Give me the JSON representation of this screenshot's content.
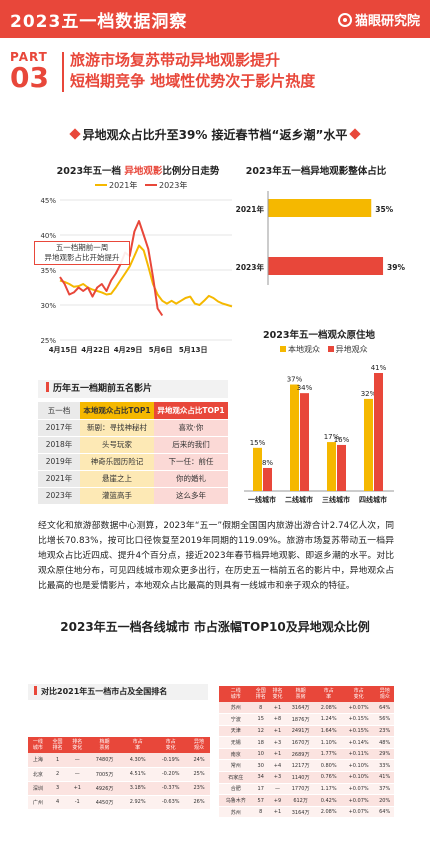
{
  "header": {
    "title": "2023五一档数据洞察",
    "brand": "猫眼研究院"
  },
  "part": {
    "label": "PART",
    "number": "03"
  },
  "headline": {
    "line1": "旅游市场复苏带动异地观影提升",
    "line2": "短档期竞争 地域性优势次于影片热度"
  },
  "section1_title": "异地观众占比升至39% 接近春节档“返乡潮”水平",
  "line_chart": {
    "title_pre": "2023年五一档 ",
    "title_hl": "异地观影",
    "title_post": "比例分日走势",
    "annotation_line1": "五一档期前一周",
    "annotation_line2": "异地观影占比开始提升"
  },
  "bar_overall": {
    "title": "2023年五一档异地观影整体占比"
  },
  "bar_origin": {
    "title": "2023年五一档观众原住地"
  },
  "top5": {
    "title": "历年五一档期前五名影片",
    "header": [
      "五一档",
      "本地观众占比TOP1",
      "异地观众占比TOP1"
    ],
    "rows": [
      [
        "2017年",
        "新剧：寻找神秘村",
        "喜欢·你"
      ],
      [
        "2018年",
        "头号玩家",
        "后来的我们"
      ],
      [
        "2019年",
        "神奇乐园历险记",
        "下一任：前任"
      ],
      [
        "2021年",
        "悬崖之上",
        "你的婚礼"
      ],
      [
        "2023年",
        "灌篮高手",
        "这么多年"
      ]
    ]
  },
  "paragraph": "经文化和旅游部数据中心测算，2023年“五一”假期全国国内旅游出游合计2.74亿人次，同比增长70.83%，按可比口径恢复至2019年同期的119.09%。旅游市场复苏带动五一档异地观众占比近四成、提升4个百分点，接近2023年春节档异地观影、即返乡潮的水平。对比观众原住地分布，可见四线城市观众更多出行，在历史五一档前五名的影片中，异地观众占比最高的也是爱情影片，本地观众占比最高的则具有一线城市和亲子观众的特征。",
  "section2_title": "2023年五一档各线城市 市占涨幅TOP10及异地观众比例",
  "city_left": {
    "title": "对比2021年五一档市占及全国排名",
    "header": [
      "一线\n城市",
      "全国\n排名",
      "排名\n变化",
      "档期\n票房",
      "市占\n率",
      "市占\n变化",
      "异地\n观众"
    ],
    "rows": [
      [
        "上海",
        "1",
        "—",
        "7480万",
        "4.30%",
        "-0.19%",
        "24%"
      ],
      [
        "北京",
        "2",
        "—",
        "7005万",
        "4.51%",
        "-0.20%",
        "25%"
      ],
      [
        "深圳",
        "3",
        "+1",
        "4926万",
        "3.18%",
        "-0.37%",
        "23%"
      ],
      [
        "广州",
        "4",
        "-1",
        "4450万",
        "2.92%",
        "-0.63%",
        "26%"
      ]
    ]
  },
  "city_right": {
    "header": [
      "二线\n城市",
      "全国\n排名",
      "排名\n变化",
      "档期\n票房",
      "市占\n率",
      "市占\n变化",
      "异地\n观众"
    ],
    "rows": [
      [
        "苏州",
        "8",
        "+1",
        "3164万",
        "2.08%",
        "+0.07%",
        "64%"
      ],
      [
        "宁波",
        "15",
        "+8",
        "1876万",
        "1.24%",
        "+0.15%",
        "56%"
      ],
      [
        "天津",
        "12",
        "+1",
        "2491万",
        "1.64%",
        "+0.15%",
        "23%"
      ],
      [
        "无锡",
        "18",
        "+3",
        "1670万",
        "1.10%",
        "+0.14%",
        "48%"
      ],
      [
        "南京",
        "10",
        "+1",
        "2689万",
        "1.77%",
        "+0.11%",
        "29%"
      ],
      [
        "常州",
        "30",
        "+4",
        "1217万",
        "0.80%",
        "+0.10%",
        "33%"
      ],
      [
        "石家庄",
        "34",
        "+3",
        "1140万",
        "0.76%",
        "+0.10%",
        "41%"
      ],
      [
        "合肥",
        "17",
        "—",
        "1770万",
        "1.17%",
        "+0.07%",
        "37%"
      ],
      [
        "乌鲁木齐",
        "57",
        "+9",
        "612万",
        "0.42%",
        "+0.07%",
        "20%"
      ],
      [
        "苏州",
        "8",
        "+1",
        "3164万",
        "2.08%",
        "+0.07%",
        "64%"
      ]
    ]
  },
  "colors": {
    "accent": "#e8473a",
    "gold": "#f5b800"
  },
  "chart_data": [
    {
      "type": "line",
      "title": "2023年五一档 异地观影比例分日走势",
      "x_ticks": [
        "4月15日",
        "4月22日",
        "4月29日",
        "5月6日",
        "5月13日"
      ],
      "y_ticks": [
        "45%",
        "40%",
        "35%",
        "30%",
        "25%"
      ],
      "ylim": [
        25,
        45
      ],
      "legend_position": "top",
      "series": [
        {
          "name": "2021年",
          "color": "#f5b800",
          "values": [
            33.5,
            33.3,
            33.0,
            32.6,
            32.7,
            33.0,
            32.5,
            32.2,
            32.0,
            31.8,
            31.5,
            31.6,
            32.5,
            33.5,
            34.5,
            35.5,
            37.0,
            38.5,
            37.8,
            35.5,
            33.0,
            31.5,
            30.6,
            30.2,
            30.6,
            30.2,
            30.6,
            31.0,
            31.2,
            30.2,
            30.0,
            30.6,
            31.3,
            31.0,
            30.5,
            30.2,
            30.0,
            29.8
          ]
        },
        {
          "name": "2023年",
          "color": "#e8473a",
          "values": [
            34.0,
            33.0,
            31.5,
            31.8,
            32.5,
            32.0,
            32.5,
            31.2,
            32.5,
            33.0,
            32.0,
            33.5,
            34.5,
            35.8,
            37.5,
            37.0,
            40.5,
            42.0,
            40.0,
            38.0,
            34.0,
            29.5,
            28.5
          ]
        }
      ]
    },
    {
      "type": "bar",
      "title": "2023年五一档异地观影整体占比",
      "categories": [
        "2021年",
        "2023年"
      ],
      "values": [
        35,
        39
      ],
      "colors": [
        "#f5b800",
        "#e8473a"
      ]
    },
    {
      "type": "bar",
      "title": "2023年五一档观众原住地",
      "categories": [
        "一线城市",
        "二线城市",
        "三线城市",
        "四线城市"
      ],
      "series": [
        {
          "name": "本地观众",
          "color": "#f5b800",
          "values": [
            15,
            37,
            17,
            32
          ]
        },
        {
          "name": "异地观众",
          "color": "#e8473a",
          "values": [
            8,
            34,
            16,
            41
          ]
        }
      ]
    }
  ]
}
